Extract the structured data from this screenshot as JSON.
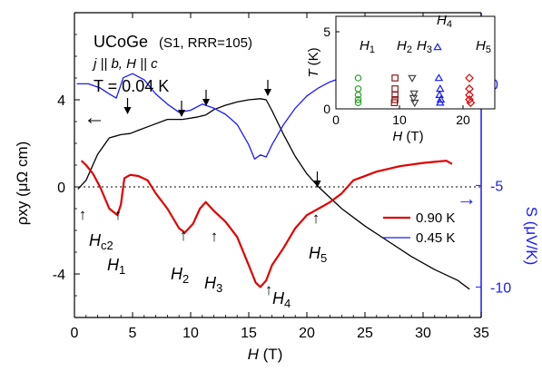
{
  "chart_data": [
    {
      "type": "line",
      "xlabel_italic": "H",
      "xlabel_unit": " (T)",
      "xlim": [
        0,
        35
      ],
      "xticks": [
        0,
        5,
        10,
        15,
        20,
        25,
        30,
        35
      ],
      "ylabel_left": "ρxy (μΩ cm)",
      "ylim_left": [
        -6,
        8
      ],
      "yticks_left": [
        -4,
        0,
        4
      ],
      "ylabel_right": "S (μV/K)",
      "ylim_right": [
        -11.5,
        3.5
      ],
      "yticks_right": [
        -10,
        -5,
        0
      ],
      "right_axis_color": "#1a1aff",
      "annotations": {
        "sample": "UCoGe",
        "sample_detail": "(S1, RRR=105)",
        "config": "j || b, H || c",
        "temperature_label": "T = 0.04 K",
        "left_arrow": "←",
        "right_arrow": "→",
        "hc2": "Hc2",
        "h1": "H1",
        "h2": "H2",
        "h3": "H3",
        "h4": "H4",
        "h5": "H5"
      },
      "legend": [
        "0.90 K",
        "0.45 K"
      ],
      "series": [
        {
          "name": "T = 0.04 K",
          "color": "#000000",
          "axis": "left",
          "x": [
            0.3,
            1,
            2,
            3,
            4,
            4.8,
            5.5,
            6.5,
            8,
            9.3,
            10.5,
            11.3,
            12,
            13,
            14,
            15,
            16,
            16.5,
            17,
            18,
            19,
            20,
            21,
            22,
            23,
            25,
            27,
            29,
            31,
            33,
            34
          ],
          "y": [
            -0.1,
            0.3,
            1.5,
            2.25,
            2.4,
            2.45,
            2.6,
            2.8,
            3.1,
            3.1,
            3.2,
            3.3,
            3.55,
            3.75,
            3.9,
            4.0,
            4.05,
            4.0,
            3.5,
            2.4,
            1.4,
            0.6,
            0.0,
            -0.5,
            -1.0,
            -1.8,
            -2.5,
            -3.2,
            -3.8,
            -4.3,
            -4.7
          ]
        },
        {
          "name": "0.90 K",
          "color": "#e00000",
          "axis": "left",
          "x": [
            0.6,
            1,
            1.6,
            2.2,
            3,
            3.7,
            4,
            4.3,
            4.8,
            5.5,
            6.3,
            7,
            8,
            9,
            9.5,
            10.2,
            10.8,
            11.3,
            12,
            13,
            14,
            15,
            15.6,
            16,
            16.5,
            17,
            18,
            19,
            20,
            21,
            22,
            23,
            24,
            26,
            28,
            30,
            31,
            32,
            32.5
          ],
          "y": [
            1.2,
            1.0,
            0.6,
            0.0,
            -1.0,
            -1.3,
            -0.8,
            0.4,
            0.55,
            0.5,
            0.3,
            -0.3,
            -1.0,
            -1.9,
            -2.1,
            -1.7,
            -1.0,
            -0.7,
            -1.1,
            -1.6,
            -2.3,
            -3.6,
            -4.4,
            -4.6,
            -4.3,
            -3.6,
            -2.8,
            -1.9,
            -1.3,
            -1.0,
            -0.7,
            -0.3,
            0.3,
            0.7,
            0.95,
            1.1,
            1.15,
            1.2,
            1.05
          ]
        },
        {
          "name": "0.45 K",
          "color": "#1a1aff",
          "axis": "right",
          "x": [
            0.2,
            1.2,
            2.2,
            3,
            3.6,
            4.2,
            5,
            6,
            7,
            8,
            9,
            10,
            11,
            12,
            13,
            14,
            15,
            15.5,
            16,
            16.5,
            17,
            18,
            19,
            20,
            21,
            22,
            23,
            24,
            25,
            26,
            27,
            28,
            29,
            30,
            31,
            31.5,
            32,
            32.2,
            32.4,
            32.6,
            32.8,
            33
          ],
          "y": [
            0,
            0,
            -0.2,
            -0.5,
            -0.7,
            0.3,
            0.5,
            0.2,
            -0.5,
            -1.0,
            -1.4,
            -1.3,
            -1.0,
            -1.2,
            -1.5,
            -2.0,
            -3.0,
            -3.7,
            -3.5,
            -3.6,
            -3.0,
            -2.0,
            -1.2,
            -0.6,
            -0.2,
            0.1,
            0.3,
            0.5,
            0.7,
            0.6,
            0.7,
            0.9,
            0.6,
            0.3,
            -0.7,
            0.8,
            -0.8,
            2.8,
            -0.4,
            2.0,
            -0.3,
            1.2
          ]
        }
      ]
    },
    {
      "type": "scatter",
      "ylabel_italic": "T",
      "ylabel_unit": " (K)",
      "xlabel_italic": "H",
      "xlabel_unit": " (T)",
      "xlim": [
        0,
        25
      ],
      "ylim": [
        0,
        6
      ],
      "xticks": [
        0,
        10,
        20
      ],
      "yticks": [
        0,
        5
      ],
      "labels": [
        "H1",
        "H2",
        "H3",
        "H4",
        "H5"
      ],
      "series": [
        {
          "name": "H1",
          "color": "#2ca02c",
          "marker": "circle",
          "x": [
            3.5,
            3.5,
            3.5,
            3.5,
            3.5
          ],
          "y": [
            2.0,
            1.3,
            0.9,
            0.6,
            0.4
          ]
        },
        {
          "name": "H2",
          "color": "#8b1a1a",
          "marker": "square",
          "x": [
            9.3,
            9.3,
            9.3,
            9.3,
            9.2
          ],
          "y": [
            2.0,
            1.3,
            0.9,
            0.6,
            0.4
          ]
        },
        {
          "name": "H3",
          "color": "#404040",
          "marker": "triangle-down",
          "x": [
            12,
            12.3,
            12.2,
            12.4
          ],
          "y": [
            2.0,
            1.0,
            0.7,
            0.4
          ]
        },
        {
          "name": "H4",
          "color": "#1a1aff",
          "marker": "triangle-up",
          "x": [
            16,
            16.2,
            16.4,
            16.3,
            16.5,
            16.4
          ],
          "y": [
            4.0,
            2.0,
            1.3,
            0.9,
            0.6,
            0.4
          ]
        },
        {
          "name": "H5",
          "color": "#e00000",
          "marker": "diamond",
          "x": [
            21,
            21,
            21,
            21,
            21.2
          ],
          "y": [
            2.0,
            1.3,
            0.9,
            0.6,
            0.4
          ]
        }
      ]
    }
  ]
}
